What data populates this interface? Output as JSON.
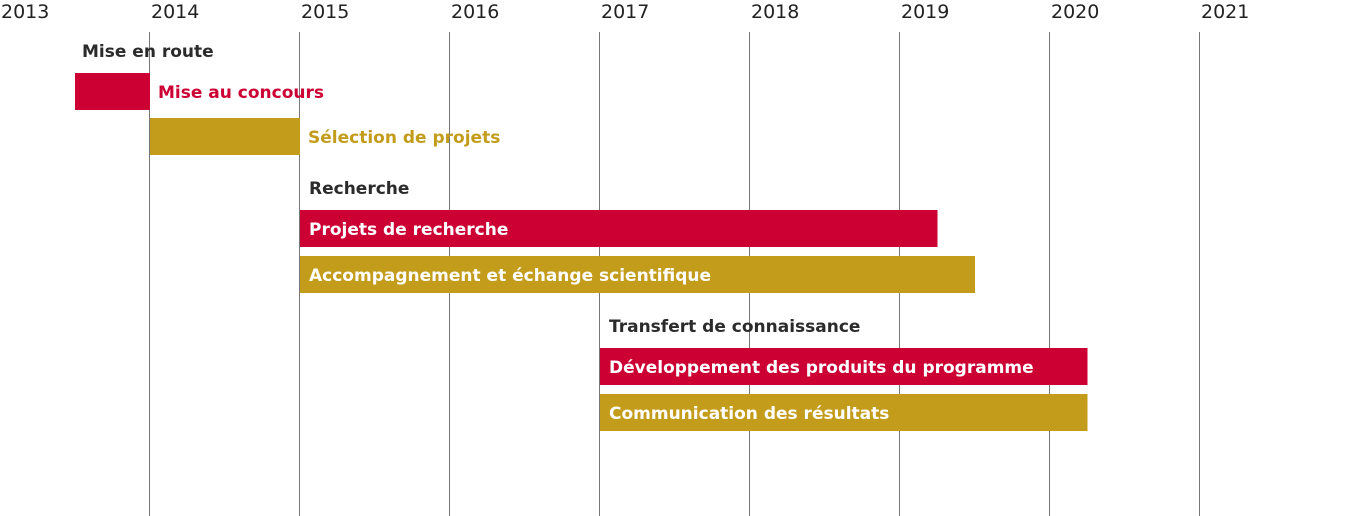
{
  "chart_data": {
    "type": "gantt",
    "x_axis": {
      "ticks": [
        "2013",
        "2014",
        "2015",
        "2016",
        "2017",
        "2018",
        "2019",
        "2020",
        "2021"
      ],
      "range": [
        2013.0,
        2021.0
      ]
    },
    "colors": {
      "red": "#cc0033",
      "gold": "#c39c1c",
      "group_text": "#2b2b2b",
      "grid": "#777777"
    },
    "groups": [
      {
        "name": "Mise en route",
        "tasks": [
          {
            "name": "Mise au concours",
            "start": 2013.5,
            "end": 2014.0,
            "color": "red",
            "label_position": "outside"
          },
          {
            "name": "Sélection de projets",
            "start": 2014.0,
            "end": 2015.0,
            "color": "gold",
            "label_position": "outside"
          }
        ]
      },
      {
        "name": "Recherche",
        "tasks": [
          {
            "name": "Projets de recherche",
            "start": 2015.0,
            "end": 2019.25,
            "color": "red",
            "label_position": "inside"
          },
          {
            "name": "Accompagnement et échange scientifique",
            "start": 2015.0,
            "end": 2019.5,
            "color": "gold",
            "label_position": "inside"
          }
        ]
      },
      {
        "name": "Transfert de connaissance",
        "tasks": [
          {
            "name": "Développement des produits du programme",
            "start": 2017.0,
            "end": 2020.25,
            "color": "red",
            "label_position": "inside"
          },
          {
            "name": "Communication des résultats",
            "start": 2017.0,
            "end": 2020.25,
            "color": "gold",
            "label_position": "inside"
          }
        ]
      }
    ]
  }
}
